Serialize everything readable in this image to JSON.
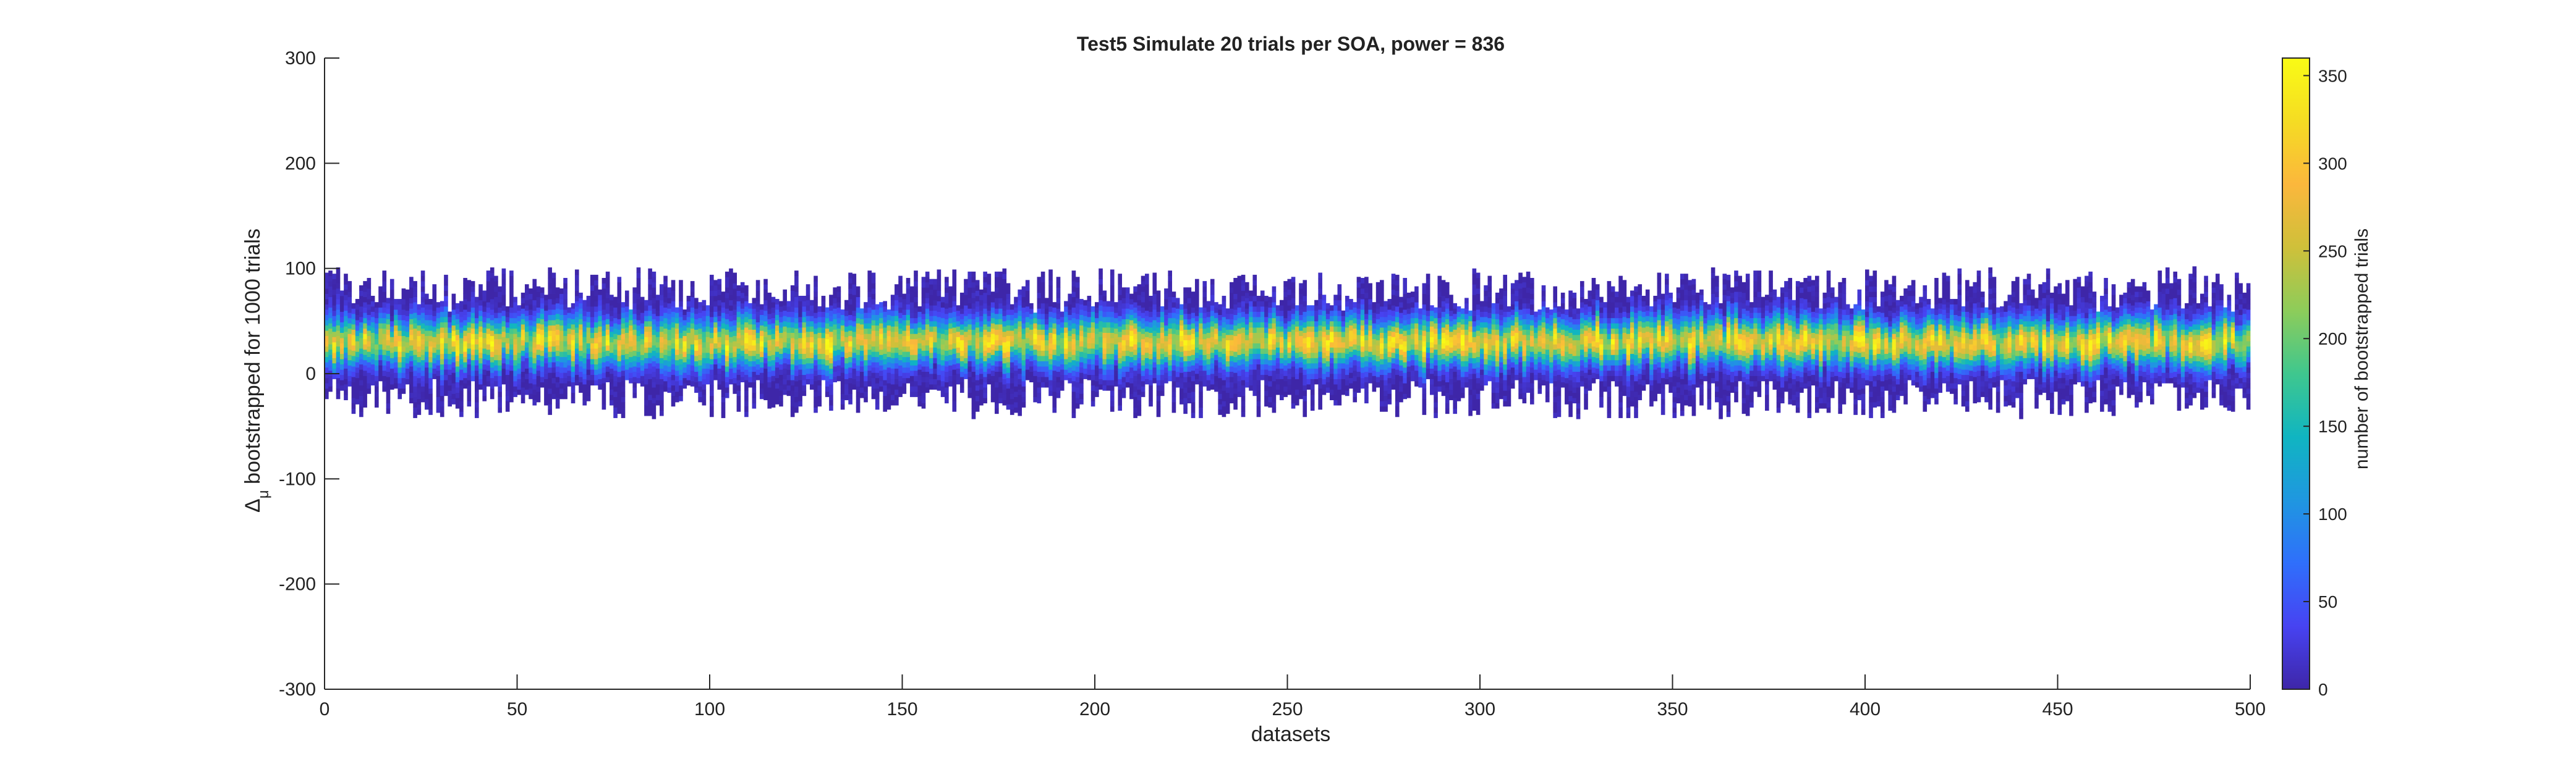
{
  "chart_data": {
    "type": "heatmap",
    "title": "Test5 Simulate 20 trials per SOA, power = 836",
    "xlabel": "datasets",
    "ylabel_symbol": "Δ",
    "ylabel_subscript": "μ",
    "ylabel_text": " bootstrapped for 1000 trials",
    "xlim": [
      0,
      500
    ],
    "ylim": [
      -300,
      300
    ],
    "x_ticks": [
      0,
      50,
      100,
      150,
      200,
      250,
      300,
      350,
      400,
      450,
      500
    ],
    "x_tick_labels": [
      "0",
      "50",
      "100",
      "150",
      "200",
      "250",
      "300",
      "350",
      "400",
      "450",
      "500"
    ],
    "y_ticks": [
      300,
      200,
      100,
      0,
      -100,
      -200,
      -300
    ],
    "y_tick_labels": [
      "300",
      "200",
      "100",
      "0",
      "-100",
      "-200",
      "-300"
    ],
    "n_datasets": 500,
    "bootstrap_value_range_approx": [
      -45,
      100
    ],
    "column_center_approx": 30,
    "grid": false,
    "colorbar": {
      "label": "number of bootstrapped trials",
      "limits": [
        0,
        360
      ],
      "ticks": [
        0,
        50,
        100,
        150,
        200,
        250,
        300,
        350
      ],
      "tick_labels": [
        "0",
        "50",
        "100",
        "150",
        "200",
        "250",
        "300",
        "350"
      ],
      "colormap": [
        "#3e26a8",
        "#4743f2",
        "#2f6ffb",
        "#1f97e0",
        "#10b5c1",
        "#3fc78e",
        "#8dcc5a",
        "#cfc03a",
        "#fbb73c",
        "#f5dc23",
        "#f9fb15"
      ]
    }
  }
}
